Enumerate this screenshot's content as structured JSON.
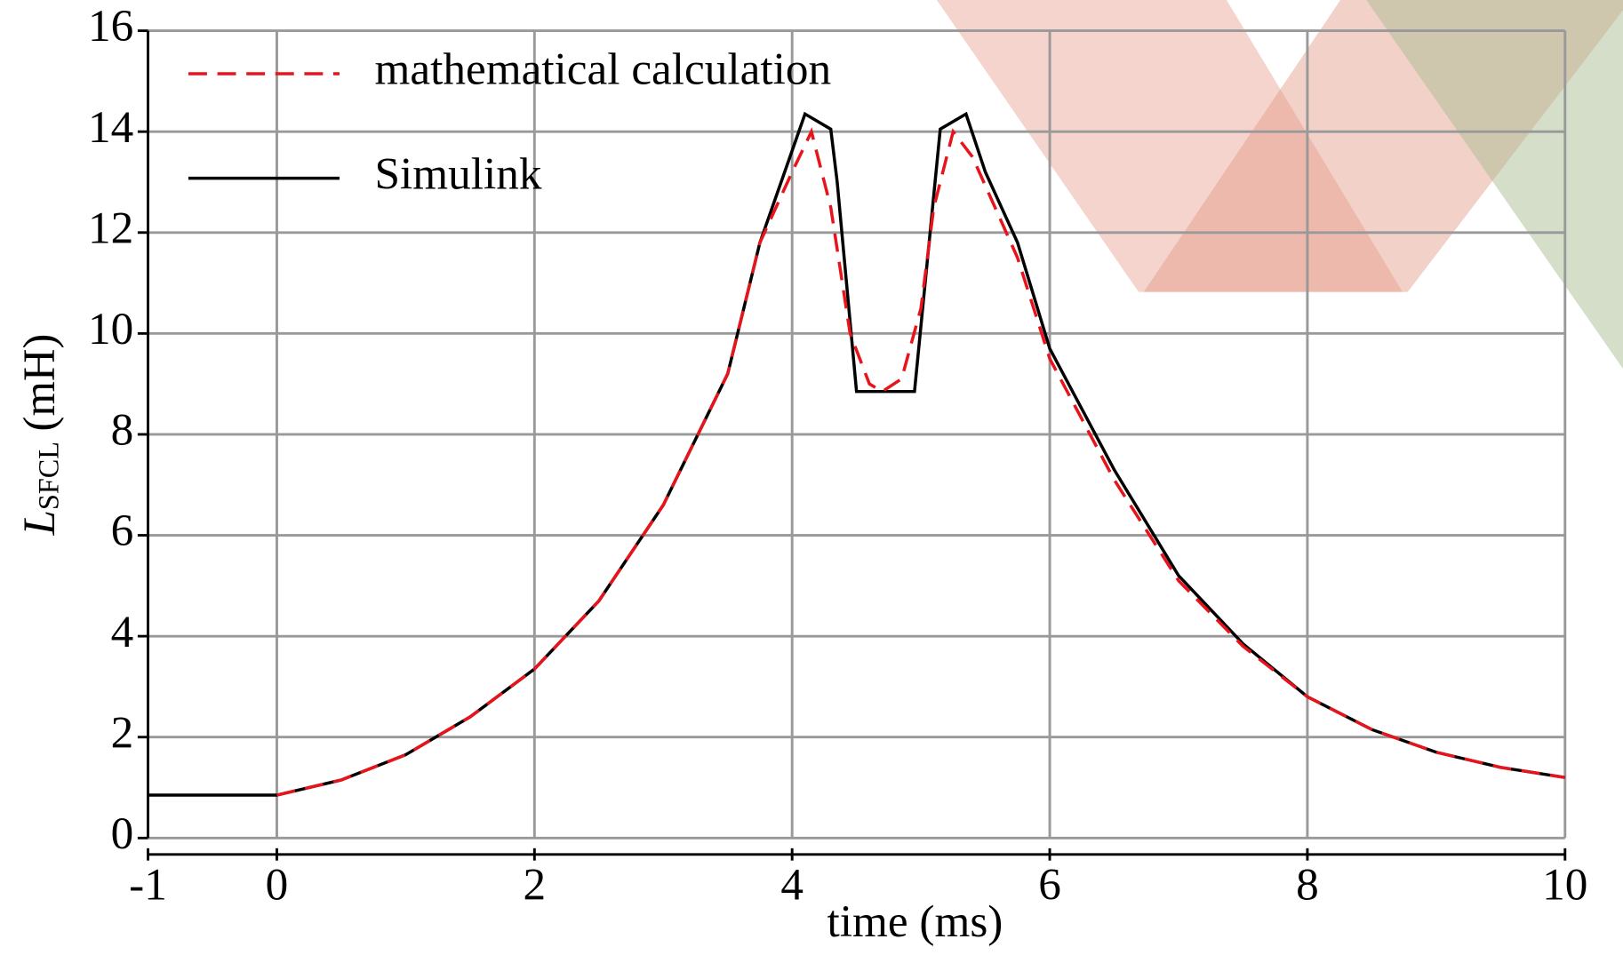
{
  "chart_data": {
    "type": "line",
    "x_label": "time  (ms)",
    "y_label": {
      "main": "L",
      "subscript": "SFCL",
      "unit": "(mH)"
    },
    "xlim": [
      -1,
      10
    ],
    "xticks": [
      -1,
      0,
      2,
      4,
      6,
      8,
      10
    ],
    "ylim": [
      0,
      16
    ],
    "yticks": [
      0,
      2,
      4,
      6,
      8,
      10,
      12,
      14,
      16
    ],
    "grid": true,
    "legend": "upper left",
    "series": [
      {
        "name": "mathematical calculation",
        "color": "#e8141b",
        "dash": true,
        "x": [
          0,
          0.5,
          1,
          1.5,
          2,
          2.5,
          3,
          3.5,
          3.75,
          4.0,
          4.15,
          4.3,
          4.45,
          4.6,
          4.7,
          4.85,
          5.0,
          5.1,
          5.25,
          5.4,
          5.75,
          6,
          6.5,
          7,
          7.5,
          8,
          8.5,
          9,
          9.5,
          10
        ],
        "values": [
          0.85,
          1.15,
          1.65,
          2.4,
          3.35,
          4.7,
          6.6,
          9.2,
          11.8,
          13.2,
          14.0,
          12.5,
          10.0,
          9.0,
          8.85,
          9.1,
          10.5,
          12.5,
          14.0,
          13.5,
          11.5,
          9.5,
          7.1,
          5.1,
          3.8,
          2.8,
          2.15,
          1.7,
          1.4,
          1.2
        ]
      },
      {
        "name": "Simulink",
        "color": "#000000",
        "dash": false,
        "x": [
          -1,
          0,
          0.5,
          1,
          1.5,
          2,
          2.5,
          3,
          3.5,
          3.75,
          4.1,
          4.3,
          4.35,
          4.5,
          4.95,
          5.15,
          5.35,
          5.5,
          5.75,
          6,
          6.5,
          7,
          7.5,
          8,
          8.5,
          9,
          9.5,
          10
        ],
        "values": [
          0.85,
          0.85,
          1.15,
          1.65,
          2.4,
          3.35,
          4.7,
          6.6,
          9.2,
          11.8,
          14.35,
          14.05,
          13.0,
          8.85,
          8.85,
          14.05,
          14.35,
          13.2,
          11.8,
          9.7,
          7.3,
          5.2,
          3.85,
          2.8,
          2.15,
          1.7,
          1.4,
          1.2
        ]
      }
    ]
  }
}
